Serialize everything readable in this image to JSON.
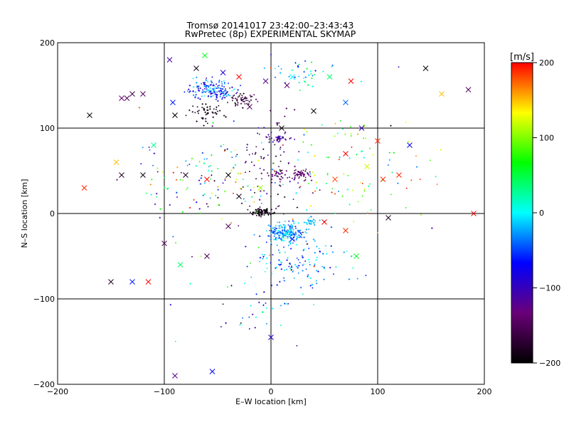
{
  "chart_data": {
    "type": "scatter",
    "title": "Tromsø 20141017 23:42:00–23:43:43",
    "subtitle": "RwPretec (8p) EXPERIMENTAL SKYMAP",
    "xlabel": "E–W location [km]",
    "ylabel": "N–S location [km]",
    "xlim": [
      -200,
      200
    ],
    "ylim": [
      -200,
      200
    ],
    "xticks": [
      -200,
      -100,
      0,
      100,
      200
    ],
    "yticks": [
      -200,
      -100,
      0,
      100,
      200
    ],
    "xtick_labels": [
      "−200",
      "−100",
      "0",
      "100",
      "200"
    ],
    "ytick_labels": [
      "−200",
      "−100",
      "0",
      "100",
      "200"
    ],
    "grid": true,
    "colorbar": {
      "label": "[m/s]",
      "range": [
        -200,
        200
      ],
      "ticks": [
        200,
        100,
        0,
        -100,
        -200
      ],
      "tick_labels": [
        "200",
        "100",
        "0",
        "−100",
        "−200"
      ],
      "colors": [
        "#000000",
        "#6a0078",
        "#0000ff",
        "#00ffff",
        "#00ff00",
        "#ffff00",
        "#ff0000"
      ]
    },
    "clusters": [
      {
        "cx": -55,
        "cy": 145,
        "sx": 16,
        "sy": 8,
        "n": 170,
        "vmin": -110,
        "vmax": 10
      },
      {
        "cx": -28,
        "cy": 135,
        "sx": 9,
        "sy": 6,
        "n": 50,
        "vmin": -195,
        "vmax": -140
      },
      {
        "cx": -60,
        "cy": 118,
        "sx": 14,
        "sy": 7,
        "n": 50,
        "vmin": -200,
        "vmax": -170
      },
      {
        "cx": 8,
        "cy": 88,
        "sx": 8,
        "sy": 3,
        "n": 35,
        "vmin": -130,
        "vmax": -90
      },
      {
        "cx": 28,
        "cy": 45,
        "sx": 7,
        "sy": 5,
        "n": 50,
        "vmin": -165,
        "vmax": -120
      },
      {
        "cx": 6,
        "cy": 45,
        "sx": 5,
        "sy": 4,
        "n": 25,
        "vmin": -170,
        "vmax": -130
      },
      {
        "cx": -8,
        "cy": 2,
        "sx": 7,
        "sy": 3,
        "n": 80,
        "vmin": -200,
        "vmax": -175
      },
      {
        "cx": 14,
        "cy": -22,
        "sx": 13,
        "sy": 8,
        "n": 200,
        "vmin": -60,
        "vmax": 10
      },
      {
        "cx": 38,
        "cy": -10,
        "sx": 5,
        "sy": 3,
        "n": 25,
        "vmin": -30,
        "vmax": 10
      },
      {
        "cx": 25,
        "cy": 165,
        "sx": 25,
        "sy": 12,
        "n": 40,
        "vmin": -80,
        "vmax": 60
      },
      {
        "cx": 0,
        "cy": 60,
        "sx": 20,
        "sy": 45,
        "n": 80,
        "vmin": -200,
        "vmax": -90
      },
      {
        "cx": 25,
        "cy": -55,
        "sx": 35,
        "sy": 25,
        "n": 120,
        "vmin": -80,
        "vmax": 20
      },
      {
        "cx": -60,
        "cy": 40,
        "sx": 45,
        "sy": 40,
        "n": 110,
        "vmin": -200,
        "vmax": 200
      },
      {
        "cx": 70,
        "cy": 60,
        "sx": 50,
        "sy": 50,
        "n": 90,
        "vmin": -40,
        "vmax": 200
      },
      {
        "cx": -10,
        "cy": -110,
        "sx": 35,
        "sy": 25,
        "n": 30,
        "vmin": -120,
        "vmax": 40
      },
      {
        "cx": 0,
        "cy": 0,
        "sx": 110,
        "sy": 95,
        "n": 70,
        "vmin": -200,
        "vmax": 200
      }
    ],
    "x_markers": [
      {
        "x": -170,
        "y": 115,
        "v": -195
      },
      {
        "x": -140,
        "y": 135,
        "v": -140
      },
      {
        "x": -135,
        "y": 135,
        "v": -150
      },
      {
        "x": -130,
        "y": 140,
        "v": -160
      },
      {
        "x": -120,
        "y": 140,
        "v": -150
      },
      {
        "x": -95,
        "y": 180,
        "v": -110
      },
      {
        "x": -92,
        "y": 130,
        "v": -60
      },
      {
        "x": -90,
        "y": 115,
        "v": -200
      },
      {
        "x": -70,
        "y": 170,
        "v": -190
      },
      {
        "x": -62,
        "y": 185,
        "v": 60
      },
      {
        "x": -45,
        "y": 165,
        "v": -80
      },
      {
        "x": -30,
        "y": 160,
        "v": 200
      },
      {
        "x": -20,
        "y": 125,
        "v": -150
      },
      {
        "x": -5,
        "y": 155,
        "v": -120
      },
      {
        "x": 10,
        "y": 100,
        "v": -190
      },
      {
        "x": 15,
        "y": 150,
        "v": -140
      },
      {
        "x": 20,
        "y": 160,
        "v": 0
      },
      {
        "x": 40,
        "y": 120,
        "v": -195
      },
      {
        "x": 55,
        "y": 160,
        "v": 40
      },
      {
        "x": 70,
        "y": 130,
        "v": -40
      },
      {
        "x": 75,
        "y": 155,
        "v": 200
      },
      {
        "x": 85,
        "y": 100,
        "v": -100
      },
      {
        "x": 100,
        "y": 85,
        "v": 190
      },
      {
        "x": 130,
        "y": 80,
        "v": -70
      },
      {
        "x": 145,
        "y": 170,
        "v": -195
      },
      {
        "x": 160,
        "y": 140,
        "v": 150
      },
      {
        "x": 185,
        "y": 145,
        "v": -150
      },
      {
        "x": -175,
        "y": 30,
        "v": 190
      },
      {
        "x": -145,
        "y": 60,
        "v": 150
      },
      {
        "x": -140,
        "y": 45,
        "v": -180
      },
      {
        "x": -120,
        "y": 45,
        "v": -190
      },
      {
        "x": -110,
        "y": 80,
        "v": 30
      },
      {
        "x": -80,
        "y": 45,
        "v": -180
      },
      {
        "x": -60,
        "y": 40,
        "v": 200
      },
      {
        "x": -40,
        "y": 45,
        "v": -200
      },
      {
        "x": -30,
        "y": 20,
        "v": -190
      },
      {
        "x": -10,
        "y": 30,
        "v": 110
      },
      {
        "x": 60,
        "y": 40,
        "v": 180
      },
      {
        "x": 70,
        "y": 70,
        "v": 200
      },
      {
        "x": 90,
        "y": 55,
        "v": 120
      },
      {
        "x": 105,
        "y": 40,
        "v": 190
      },
      {
        "x": 120,
        "y": 45,
        "v": 190
      },
      {
        "x": -100,
        "y": -35,
        "v": -150
      },
      {
        "x": -85,
        "y": -60,
        "v": 40
      },
      {
        "x": -60,
        "y": -50,
        "v": -160
      },
      {
        "x": -40,
        "y": -15,
        "v": -150
      },
      {
        "x": 20,
        "y": -30,
        "v": -60
      },
      {
        "x": 50,
        "y": -10,
        "v": 200
      },
      {
        "x": 70,
        "y": -20,
        "v": 190
      },
      {
        "x": 80,
        "y": -50,
        "v": 60
      },
      {
        "x": 110,
        "y": -5,
        "v": -180
      },
      {
        "x": 190,
        "y": 0,
        "v": 200
      },
      {
        "x": -150,
        "y": -80,
        "v": -180
      },
      {
        "x": -130,
        "y": -80,
        "v": -60
      },
      {
        "x": -115,
        "y": -80,
        "v": 200
      },
      {
        "x": 0,
        "y": -145,
        "v": -90
      },
      {
        "x": -90,
        "y": -190,
        "v": -120
      },
      {
        "x": -55,
        "y": -185,
        "v": -70
      }
    ]
  }
}
